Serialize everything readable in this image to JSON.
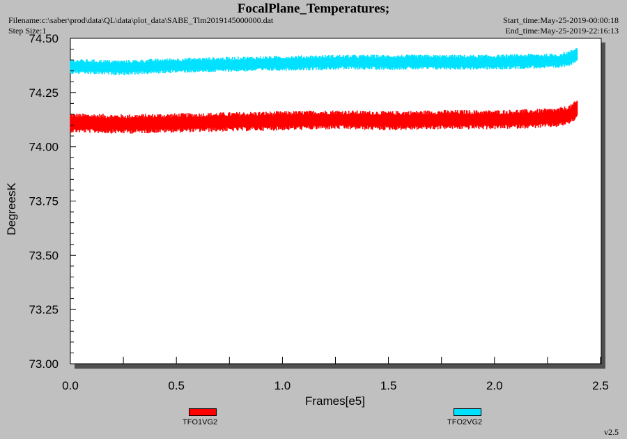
{
  "header": {
    "title": "FocalPlane_Temperatures;",
    "filename": "Filename:c:\\saber\\prod\\data\\QL\\data\\plot_data\\SABE_Tlm2019145000000.dat",
    "step_size": "Step Size:1",
    "start_time": "Start_time:May-25-2019-00:00:18",
    "end_time": "End_time:May-25-2019-22:16:13"
  },
  "footer": {
    "version": "v2.5"
  },
  "chart_data": {
    "type": "line",
    "title": "FocalPlane_Temperatures;",
    "xlabel": "Frames[e5]",
    "ylabel": "DegreesK",
    "xlim": [
      0,
      2.5
    ],
    "ylim": [
      73.0,
      74.5
    ],
    "x_ticks": [
      "0.0",
      "0.5",
      "1.0",
      "1.5",
      "2.0",
      "2.5"
    ],
    "y_ticks": [
      "73.00",
      "73.25",
      "73.50",
      "73.75",
      "74.00",
      "74.25",
      "74.50"
    ],
    "grid": false,
    "legend_position": "bottom",
    "series": [
      {
        "name": "TFO1VG2",
        "color": "#ff0000",
        "x": [
          0.0,
          0.25,
          0.5,
          0.75,
          1.0,
          1.25,
          1.5,
          1.75,
          2.0,
          2.2,
          2.3,
          2.36,
          2.39
        ],
        "y": [
          74.11,
          74.105,
          74.11,
          74.115,
          74.12,
          74.125,
          74.12,
          74.125,
          74.125,
          74.13,
          74.135,
          74.15,
          74.175
        ],
        "spread": 0.045
      },
      {
        "name": "TFO2VG2",
        "color": "#00e1ff",
        "x": [
          0.0,
          0.25,
          0.5,
          0.75,
          1.0,
          1.25,
          1.5,
          1.75,
          2.0,
          2.2,
          2.3,
          2.36,
          2.39
        ],
        "y": [
          74.37,
          74.365,
          74.375,
          74.38,
          74.385,
          74.39,
          74.39,
          74.39,
          74.39,
          74.395,
          74.395,
          74.41,
          74.43
        ],
        "spread": 0.035
      }
    ]
  }
}
